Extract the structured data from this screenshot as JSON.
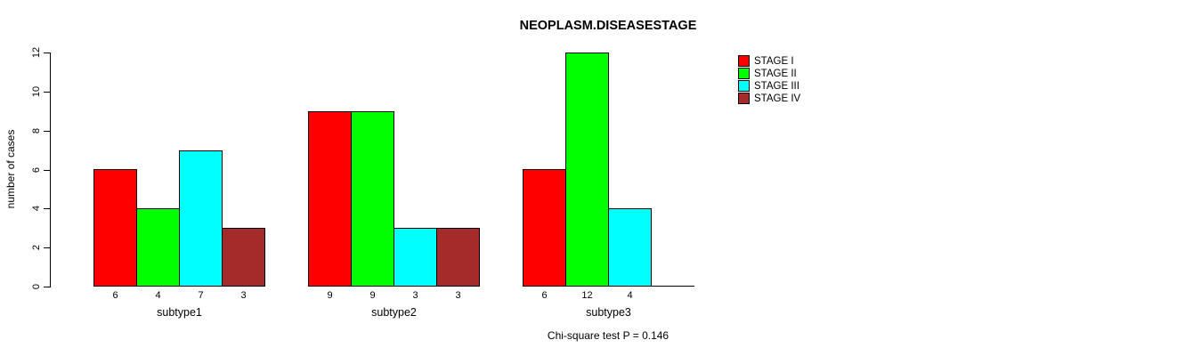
{
  "chart_data": {
    "type": "bar",
    "title": "NEOPLASM.DISEASESTAGE",
    "xlabel": "",
    "ylabel": "number of cases",
    "ylim": [
      0,
      12
    ],
    "yticks": [
      0,
      2,
      4,
      6,
      8,
      10,
      12
    ],
    "categories": [
      "subtype1",
      "subtype2",
      "subtype3"
    ],
    "series": [
      {
        "name": "STAGE I",
        "color": "#FF0000",
        "values": [
          6,
          9,
          6
        ]
      },
      {
        "name": "STAGE II",
        "color": "#00FF00",
        "values": [
          4,
          9,
          12
        ]
      },
      {
        "name": "STAGE III",
        "color": "#00FFFF",
        "values": [
          7,
          3,
          4
        ]
      },
      {
        "name": "STAGE IV",
        "color": "#A52A2A",
        "values": [
          3,
          3,
          null
        ]
      }
    ],
    "bar_value_labels": {
      "subtype1": [
        "6",
        "4",
        "7",
        "3"
      ],
      "subtype2": [
        "9",
        "9",
        "3",
        "3"
      ],
      "subtype3": [
        "6",
        "12",
        "4"
      ]
    },
    "grid": false,
    "legend_position": "right",
    "legend_items": [
      "STAGE I",
      "STAGE II",
      "STAGE III",
      "STAGE IV"
    ],
    "note": "Chi-square test P = 0.146",
    "axis_color": "#000000",
    "background_color": "#FFFFFF"
  }
}
